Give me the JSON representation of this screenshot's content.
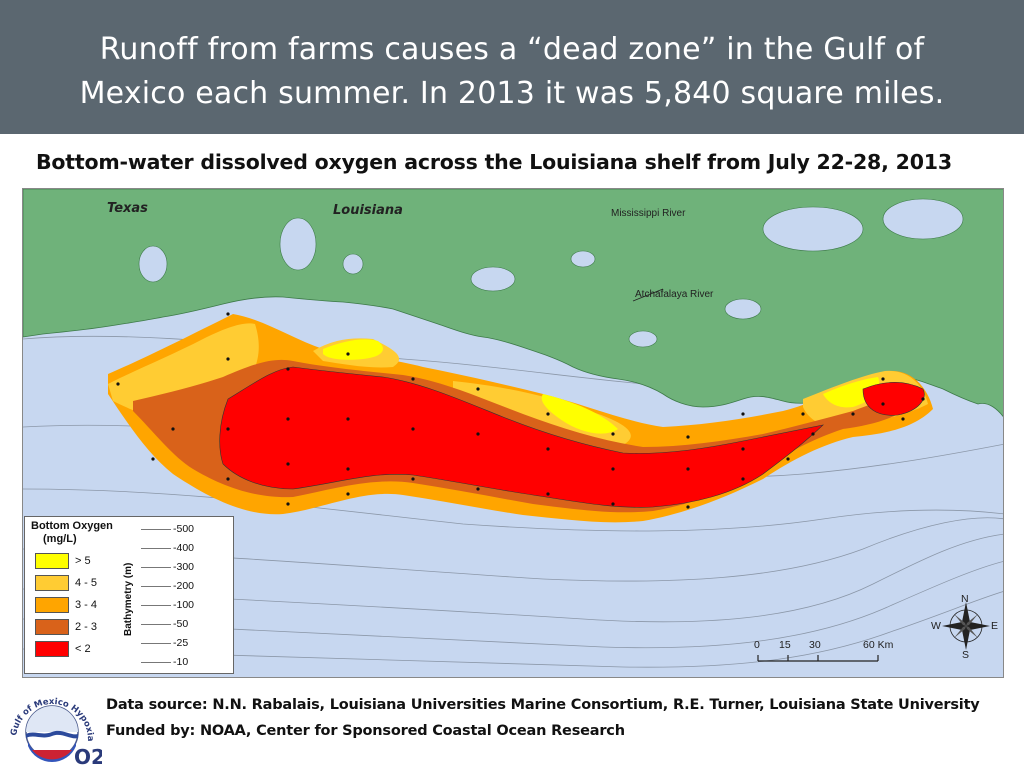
{
  "header": {
    "line1": "Runoff from farms causes a “dead zone” in the Gulf of",
    "line2": "Mexico each summer. In 2013 it was 5,840 square miles."
  },
  "map": {
    "title": "Bottom-water dissolved oxygen across the Louisiana shelf from July 22-28, 2013",
    "place_labels": {
      "texas": "Texas",
      "louisiana": "Louisiana",
      "mississippi_river": "Mississippi River",
      "atchafalaya_river": "Atchafalaya River"
    },
    "colors": {
      "land": "#6fb27a",
      "water": "#c7d7f0",
      "gt5": "#ffff00",
      "r4_5": "#ffcc33",
      "r3_4": "#ffa500",
      "r2_3": "#d9621a",
      "lt2": "#ff0000"
    }
  },
  "legend": {
    "title": "Bottom Oxygen",
    "unit": "(mg/L)",
    "items": [
      {
        "label": "> 5",
        "color": "#ffff00"
      },
      {
        "label": "4 - 5",
        "color": "#ffcc33"
      },
      {
        "label": "3 - 4",
        "color": "#ffa500"
      },
      {
        "label": "2 - 3",
        "color": "#d9621a"
      },
      {
        "label": "< 2",
        "color": "#ff0000"
      }
    ],
    "bathymetry_title": "Bathymetry (m)",
    "bathymetry": [
      "-500",
      "-400",
      "-300",
      "-200",
      "-100",
      "-50",
      "-25",
      "-10"
    ]
  },
  "scale_bar": {
    "ticks": [
      "0",
      "15",
      "30",
      "60 Km"
    ]
  },
  "compass": {
    "n": "N",
    "s": "S",
    "e": "E",
    "w": "W"
  },
  "footer": {
    "logo_text": "Gulf of Mexico Hypoxia",
    "logo_mark": "O2",
    "data_source": "Data source: N.N. Rabalais, Louisiana Universities Marine Consortium, R.E. Turner, Louisiana State University",
    "funded_by": "Funded by: NOAA, Center for Sponsored Coastal Ocean Research"
  }
}
